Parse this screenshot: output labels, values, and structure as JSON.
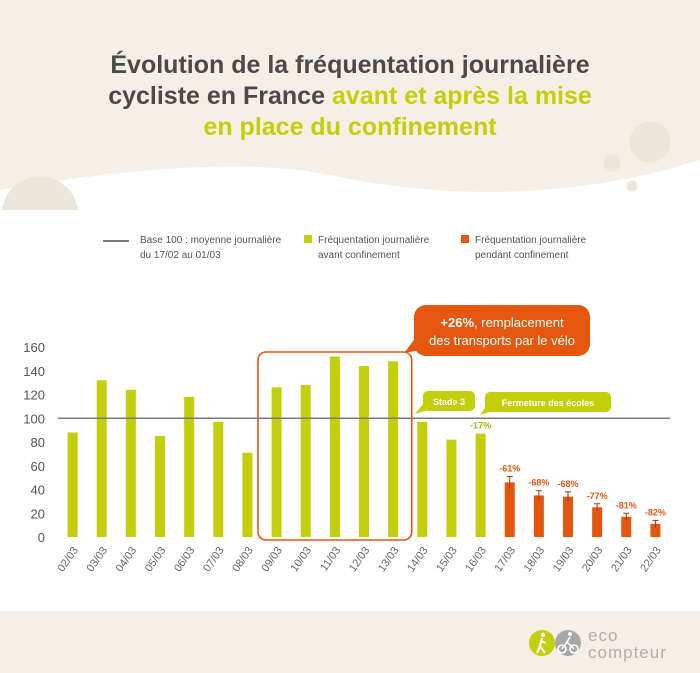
{
  "title": {
    "part1": "Évolution de la fréquentation journalière",
    "part2": "cycliste en France",
    "part3": "avant et après la mise",
    "part4": "en place du confinement"
  },
  "legend": {
    "baseline_line1": "Base 100 : moyenne journalière",
    "baseline_line2": "du 17/02 au 01/03",
    "before_line1": "Fréquentation journalière",
    "before_line2": "avant confinement",
    "during_line1": "Fréquentation journalière",
    "during_line2": "pendant confinement"
  },
  "colors": {
    "before": "#c4cf0c",
    "during": "#e5560f",
    "title_text": "#4a4a4a",
    "baseline": "#7a7a7a",
    "footer_bg": "#f5efe6"
  },
  "chart_data": {
    "type": "bar",
    "categories": [
      "02/03",
      "03/03",
      "04/03",
      "05/03",
      "06/03",
      "07/03",
      "08/03",
      "09/03",
      "10/03",
      "11/03",
      "12/03",
      "13/03",
      "14/03",
      "15/03",
      "16/03",
      "17/03",
      "18/03",
      "19/03",
      "20/03",
      "21/03",
      "22/03"
    ],
    "series": [
      {
        "name": "Fréquentation journalière avant confinement",
        "values": [
          88,
          132,
          124,
          85,
          118,
          97,
          71,
          126,
          128,
          152,
          144,
          148,
          97,
          82,
          87,
          null,
          null,
          null,
          null,
          null,
          null
        ]
      },
      {
        "name": "Fréquentation journalière pendant confinement",
        "values": [
          null,
          null,
          null,
          null,
          null,
          null,
          null,
          null,
          null,
          null,
          null,
          null,
          null,
          null,
          null,
          46,
          35,
          34,
          25,
          17,
          11
        ]
      }
    ],
    "error_bars": [
      null,
      null,
      null,
      null,
      null,
      null,
      null,
      null,
      null,
      null,
      null,
      null,
      null,
      null,
      null,
      5,
      4,
      4,
      3,
      3,
      3
    ],
    "bar_labels": [
      "",
      "",
      "",
      "",
      "",
      "",
      "",
      "",
      "",
      "",
      "",
      "",
      "",
      "",
      "-17%",
      "-61%",
      "-68%",
      "-68%",
      "-77%",
      "-81%",
      "-82%"
    ],
    "baseline": 100,
    "ylim": [
      0,
      160
    ],
    "yticks": [
      0,
      20,
      40,
      60,
      80,
      100,
      120,
      140,
      160
    ],
    "annotations": {
      "highlight_text_bold": "+26%",
      "highlight_text_rest": ", remplacement",
      "highlight_text_line2": "des transports par le vélo",
      "stade3": "Stade 3",
      "ecoles": "Fermeture des écoles"
    }
  },
  "logo": {
    "line1": "eco",
    "line2": "compteur"
  }
}
